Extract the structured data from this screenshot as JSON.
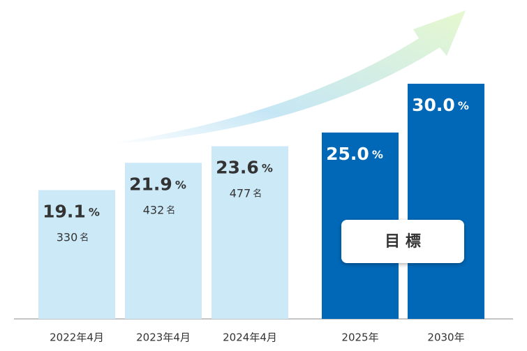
{
  "chart_data": {
    "type": "bar",
    "categories": [
      "2022年4月",
      "2023年4月",
      "2024年4月",
      "2025年",
      "2030年"
    ],
    "values": [
      19.1,
      21.9,
      23.6,
      25.0,
      30.0
    ],
    "value_labels": [
      "19.1",
      "21.9",
      "23.6",
      "25.0",
      "30.0"
    ],
    "unit": "%",
    "counts": [
      330,
      432,
      477,
      null,
      null
    ],
    "count_unit": "名",
    "colors": [
      "#cce9f8",
      "#cce9f8",
      "#cce9f8",
      "#0068b7",
      "#0068b7"
    ],
    "target_label": "目 標",
    "ylim": [
      5.9,
      30
    ]
  }
}
